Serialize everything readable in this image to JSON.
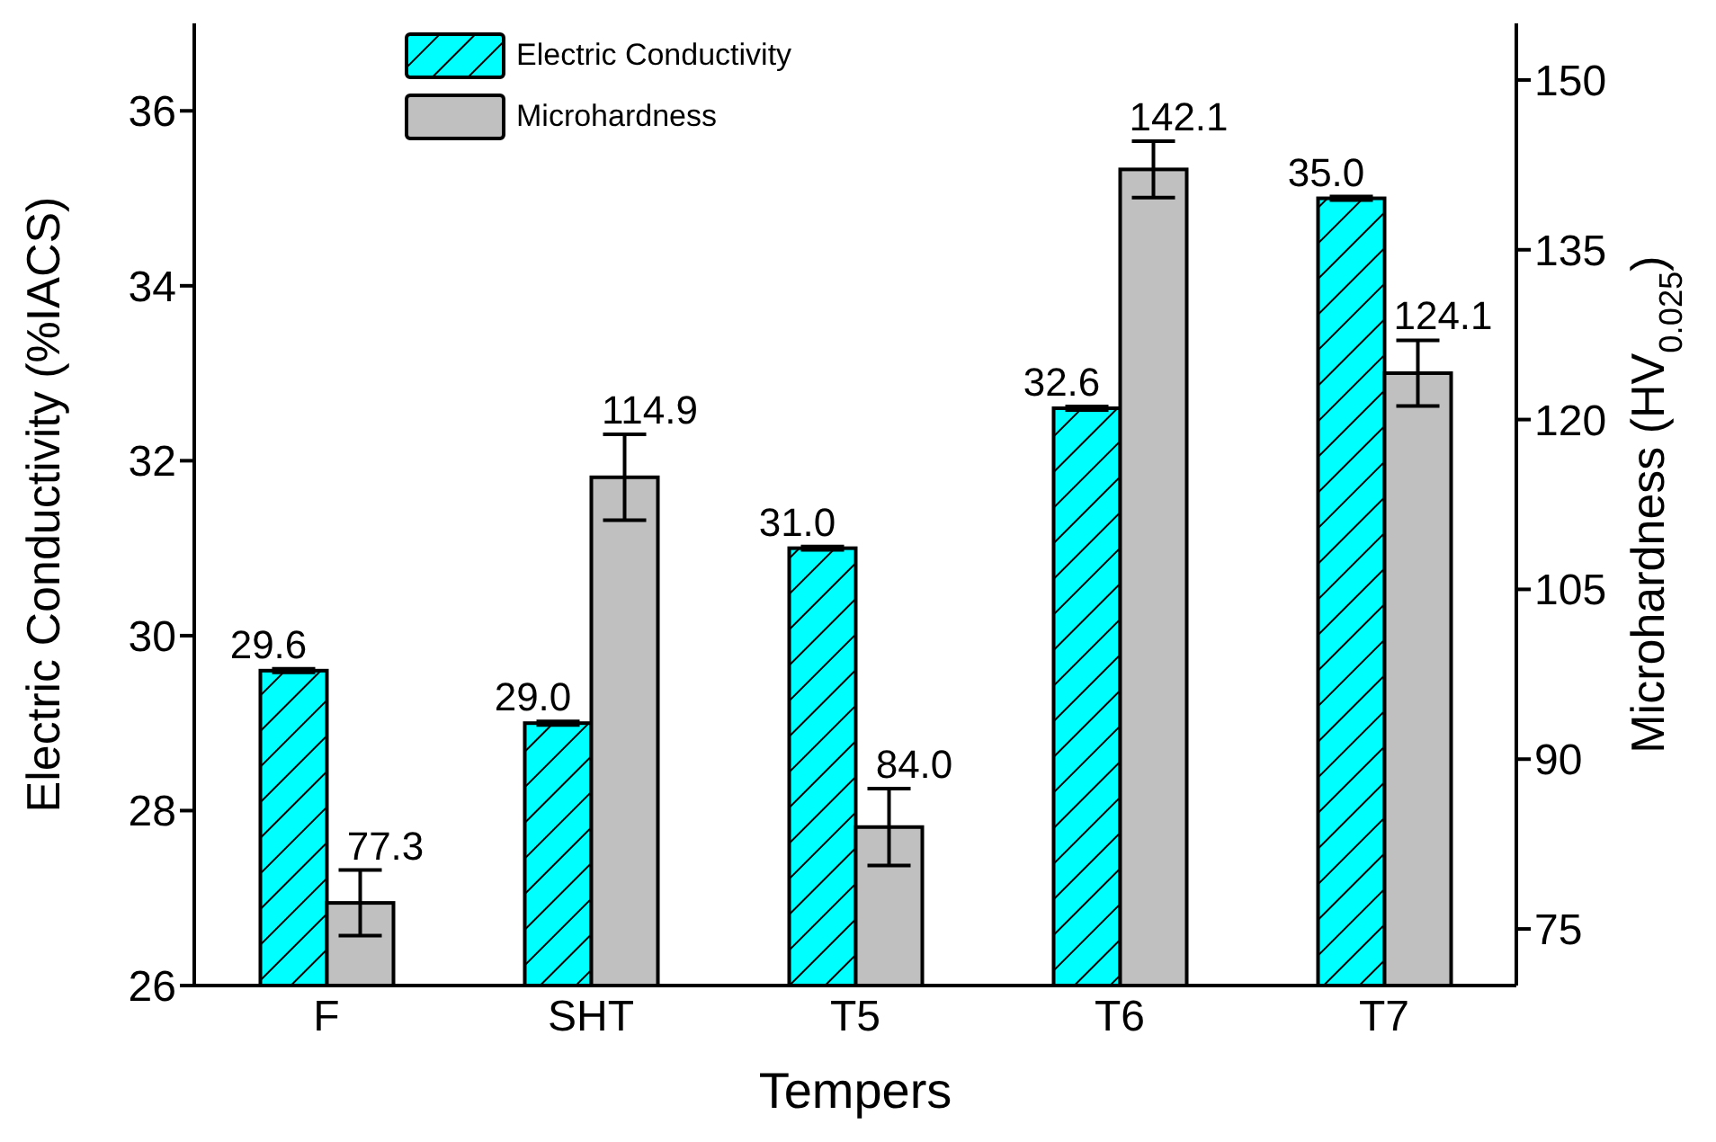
{
  "chart_data": {
    "type": "bar",
    "xlabel": "Tempers",
    "ylabel": "Electric Conductivity (%IACS)",
    "y2label": "Microhardness (HV$_{0.025}$)",
    "categories": [
      "F",
      "SHT",
      "T5",
      "T6",
      "T7"
    ],
    "series": [
      {
        "name": "Electric Conductivity",
        "color": "#00ffff",
        "values": [
          29.6,
          29.0,
          31.0,
          32.6,
          35.0
        ],
        "errors": [
          0.02,
          0.02,
          0.02,
          0.02,
          0.02
        ],
        "value_labels": [
          "29.6",
          "29.0",
          "31.0",
          "32.6",
          "35.0"
        ]
      },
      {
        "name": "Microhardness",
        "color": "#c0c0c0",
        "axis": "y2",
        "values": [
          77.3,
          114.9,
          84.0,
          142.1,
          124.1
        ],
        "errors": [
          2.9,
          3.8,
          3.4,
          2.5,
          2.9
        ],
        "value_labels": [
          "77.3",
          "114.9",
          "84.0",
          "142.1",
          "124.1"
        ]
      }
    ],
    "ylim": [
      26,
      37
    ],
    "yticks": [
      26,
      28,
      30,
      32,
      34,
      36
    ],
    "y2lim": [
      70,
      155
    ],
    "y2ticks": [
      75,
      90,
      105,
      120,
      135,
      150
    ],
    "legend": "top",
    "grid": false
  }
}
